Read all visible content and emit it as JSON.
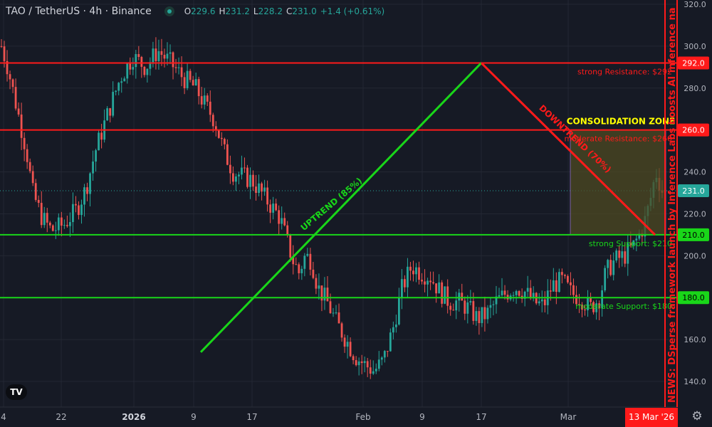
{
  "header": {
    "symbol": "TAO / TetherUS · 4h · Binance",
    "ohlc": {
      "o_label": "O",
      "o_value": "229.6",
      "h_label": "H",
      "h_value": "231.2",
      "l_label": "L",
      "l_value": "228.2",
      "c_label": "C",
      "c_value": "231.0",
      "change": "+1.4 (+0.61%)"
    }
  },
  "icons": {
    "logo": "tradingview-logo-icon",
    "settings": "gear-icon",
    "status": "market-status-icon"
  },
  "logo_text": "TV",
  "colors": {
    "background": "#161a25",
    "grid": "#232733",
    "bull": "#26a69a",
    "bear": "#ef5350",
    "resistance": "#ff1a1a",
    "support": "#19d619",
    "price_line": "#26a69a",
    "consolidation_zone": "#4d4a22",
    "news_bar": "#ff1a1a"
  },
  "chart_data": {
    "type": "candlestick",
    "y_axis": {
      "range": [
        132,
        322
      ],
      "ticks": [
        "320.0",
        "300.0",
        "280.0",
        "260.0",
        "240.0",
        "220.0",
        "200.0",
        "180.0",
        "160.0",
        "140.0"
      ]
    },
    "x_axis": {
      "ticks": [
        "4",
        "22",
        "2026",
        "9",
        "17",
        "Feb",
        "9",
        "17",
        "Mar"
      ],
      "cursor_label": "13 Mar '26"
    },
    "current_price": 231.0,
    "series_path": [
      [
        0,
        300
      ],
      [
        0.02,
        290
      ],
      [
        0.05,
        270
      ],
      [
        0.08,
        250
      ],
      [
        0.1,
        230
      ],
      [
        0.13,
        218
      ],
      [
        0.16,
        212
      ],
      [
        0.2,
        215
      ],
      [
        0.24,
        222
      ],
      [
        0.27,
        232
      ],
      [
        0.3,
        250
      ],
      [
        0.34,
        268
      ],
      [
        0.38,
        285
      ],
      [
        0.42,
        295
      ],
      [
        0.46,
        290
      ],
      [
        0.5,
        298
      ],
      [
        0.54,
        292
      ],
      [
        0.58,
        285
      ],
      [
        0.62,
        280
      ],
      [
        0.65,
        272
      ],
      [
        0.68,
        265
      ],
      [
        0.71,
        250
      ],
      [
        0.74,
        240
      ],
      [
        0.77,
        238
      ],
      [
        0.8,
        236
      ],
      [
        0.83,
        230
      ],
      [
        0.86,
        224
      ],
      [
        0.89,
        218
      ],
      [
        0.91,
        208
      ],
      [
        0.93,
        198
      ],
      [
        0.95,
        192
      ],
      [
        0.97,
        200
      ],
      [
        0.99,
        198
      ],
      [
        1.01,
        185
      ],
      [
        1.04,
        178
      ],
      [
        1.07,
        168
      ],
      [
        1.1,
        160
      ],
      [
        1.13,
        152
      ],
      [
        1.16,
        148
      ],
      [
        1.19,
        145
      ],
      [
        1.22,
        150
      ],
      [
        1.25,
        165
      ],
      [
        1.28,
        185
      ],
      [
        1.31,
        195
      ],
      [
        1.34,
        192
      ],
      [
        1.37,
        190
      ],
      [
        1.4,
        183
      ],
      [
        1.43,
        178
      ],
      [
        1.46,
        178
      ],
      [
        1.49,
        175
      ],
      [
        1.52,
        170
      ],
      [
        1.55,
        172
      ],
      [
        1.58,
        178
      ],
      [
        1.61,
        182
      ],
      [
        1.64,
        185
      ],
      [
        1.67,
        183
      ],
      [
        1.7,
        178
      ],
      [
        1.73,
        176
      ],
      [
        1.76,
        186
      ],
      [
        1.79,
        188
      ],
      [
        1.82,
        182
      ],
      [
        1.85,
        180
      ],
      [
        1.88,
        175
      ],
      [
        1.91,
        180
      ],
      [
        1.93,
        192
      ],
      [
        1.96,
        198
      ],
      [
        1.99,
        200
      ],
      [
        2.02,
        205
      ],
      [
        2.05,
        214
      ],
      [
        2.07,
        225
      ],
      [
        2.09,
        240
      ],
      [
        2.11,
        231
      ]
    ],
    "levels": [
      {
        "name": "strong-resistance",
        "price": 292.0,
        "label": "strong Resistance: $292",
        "axis_label": "292.0",
        "kind": "resistance"
      },
      {
        "name": "moderate-resistance",
        "price": 260.0,
        "label": "moderate Resistance: $260",
        "axis_label": "260.0",
        "kind": "resistance"
      },
      {
        "name": "strong-support",
        "price": 210.0,
        "label": "strong Support: $210",
        "axis_label": "210.0",
        "kind": "support"
      },
      {
        "name": "moderate-support",
        "price": 180.0,
        "label": "moderate Support: $180",
        "axis_label": "180.0",
        "kind": "support"
      }
    ],
    "price_axis_label": "231.0",
    "trendlines": [
      {
        "name": "uptrend",
        "label": "UPTREND (85%)",
        "kind": "support"
      },
      {
        "name": "downtrend",
        "label": "DOWNTREND (70%)",
        "kind": "resistance"
      }
    ],
    "zone": {
      "label": "CONSOLIDATION ZONE",
      "top": 260,
      "bottom": 210
    },
    "news": "NEWS: DSperse framework launch by Inference Labs boosts AI inference na"
  }
}
